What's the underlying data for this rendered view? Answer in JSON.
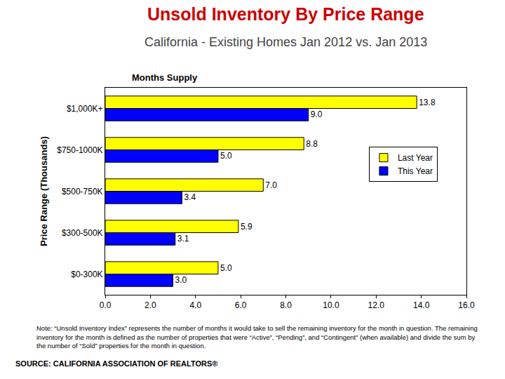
{
  "chart_data": {
    "type": "bar",
    "title": "Unsold Inventory By Price Range",
    "subtitle": "California - Existing Homes Jan 2012 vs. Jan 2013",
    "x_label": "Months Supply",
    "y_label": "Price Range (Thousands)",
    "orientation": "horizontal",
    "categories": [
      "$0-300K",
      "$300-500K",
      "$500-750K",
      "$750-1000K",
      "$1,000K+"
    ],
    "series": [
      {
        "name": "Last Year",
        "color": "#ffff00",
        "values": [
          5.0,
          5.9,
          7.0,
          8.8,
          13.8
        ],
        "value_labels": [
          "5.0",
          "5.9",
          "7.0",
          "8.8",
          "13.8"
        ]
      },
      {
        "name": "This Year",
        "color": "#0000ff",
        "values": [
          3.0,
          3.1,
          3.4,
          5.0,
          9.0
        ],
        "value_labels": [
          "3.0",
          "3.1",
          "3.4",
          "5.0",
          "9.0"
        ]
      }
    ],
    "xlim": [
      0,
      16
    ],
    "xticks": [
      {
        "value": 0,
        "label": "0.0"
      },
      {
        "value": 2,
        "label": "2.0"
      },
      {
        "value": 4,
        "label": "4.0"
      },
      {
        "value": 6,
        "label": "6.0"
      },
      {
        "value": 8,
        "label": "8.0"
      },
      {
        "value": 10,
        "label": "10.0"
      },
      {
        "value": 12,
        "label": "12.0"
      },
      {
        "value": 14,
        "label": "14.0"
      },
      {
        "value": 16,
        "label": "16.0"
      }
    ],
    "data_labels": true,
    "legend": "right",
    "grid": false,
    "annotations": [
      "Note: “Unsold Inventory Index” represents the number of months it would take to sell the remaining inventory for the month in question. The remaining inventory for the month is defined as the number of properties that were “Active”, “Pending”, and “Contingent” (when available) and divide the sum by the number of “Sold” properties for the month in question.",
      "SOURCE: CALIFORNIA ASSOCIATION OF REALTORS®"
    ]
  }
}
